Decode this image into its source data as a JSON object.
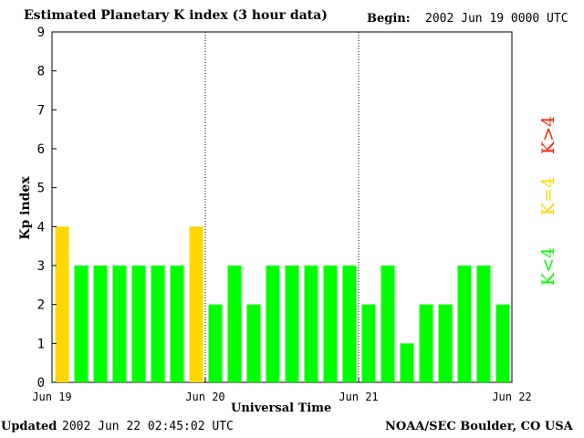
{
  "header": {
    "title": "Estimated Planetary K index (3 hour data)",
    "begin_label": "Begin:",
    "begin_value": "2002 Jun 19 0000 UTC"
  },
  "footer": {
    "updated_label": "Updated",
    "updated_value": "2002 Jun 22 02:45:02 UTC",
    "credit": "NOAA/SEC Boulder, CO USA"
  },
  "legend": {
    "lt": "K<4",
    "eq": "K=4",
    "gt": "K>4"
  },
  "colors": {
    "lt": "#00ff00",
    "eq": "#ffd700",
    "gt": "#ff2200",
    "day_divider": "#000000"
  },
  "chart_data": {
    "type": "bar",
    "title": "Estimated Planetary K index (3 hour data)",
    "xlabel": "Universal Time",
    "ylabel": "Kp index",
    "ylim": [
      0,
      9
    ],
    "yticks": [
      "0",
      "1",
      "2",
      "3",
      "4",
      "5",
      "6",
      "7",
      "8",
      "9"
    ],
    "xtick_labels": [
      "Jun 19",
      "Jun 20",
      "Jun 21",
      "Jun 22"
    ],
    "values": [
      4,
      3,
      3,
      3,
      3,
      3,
      3,
      4,
      2,
      3,
      2,
      3,
      3,
      3,
      3,
      3,
      2,
      3,
      1,
      2,
      2,
      3,
      3,
      2
    ],
    "grid": false,
    "day_dividers": true,
    "legend_position": "right"
  }
}
